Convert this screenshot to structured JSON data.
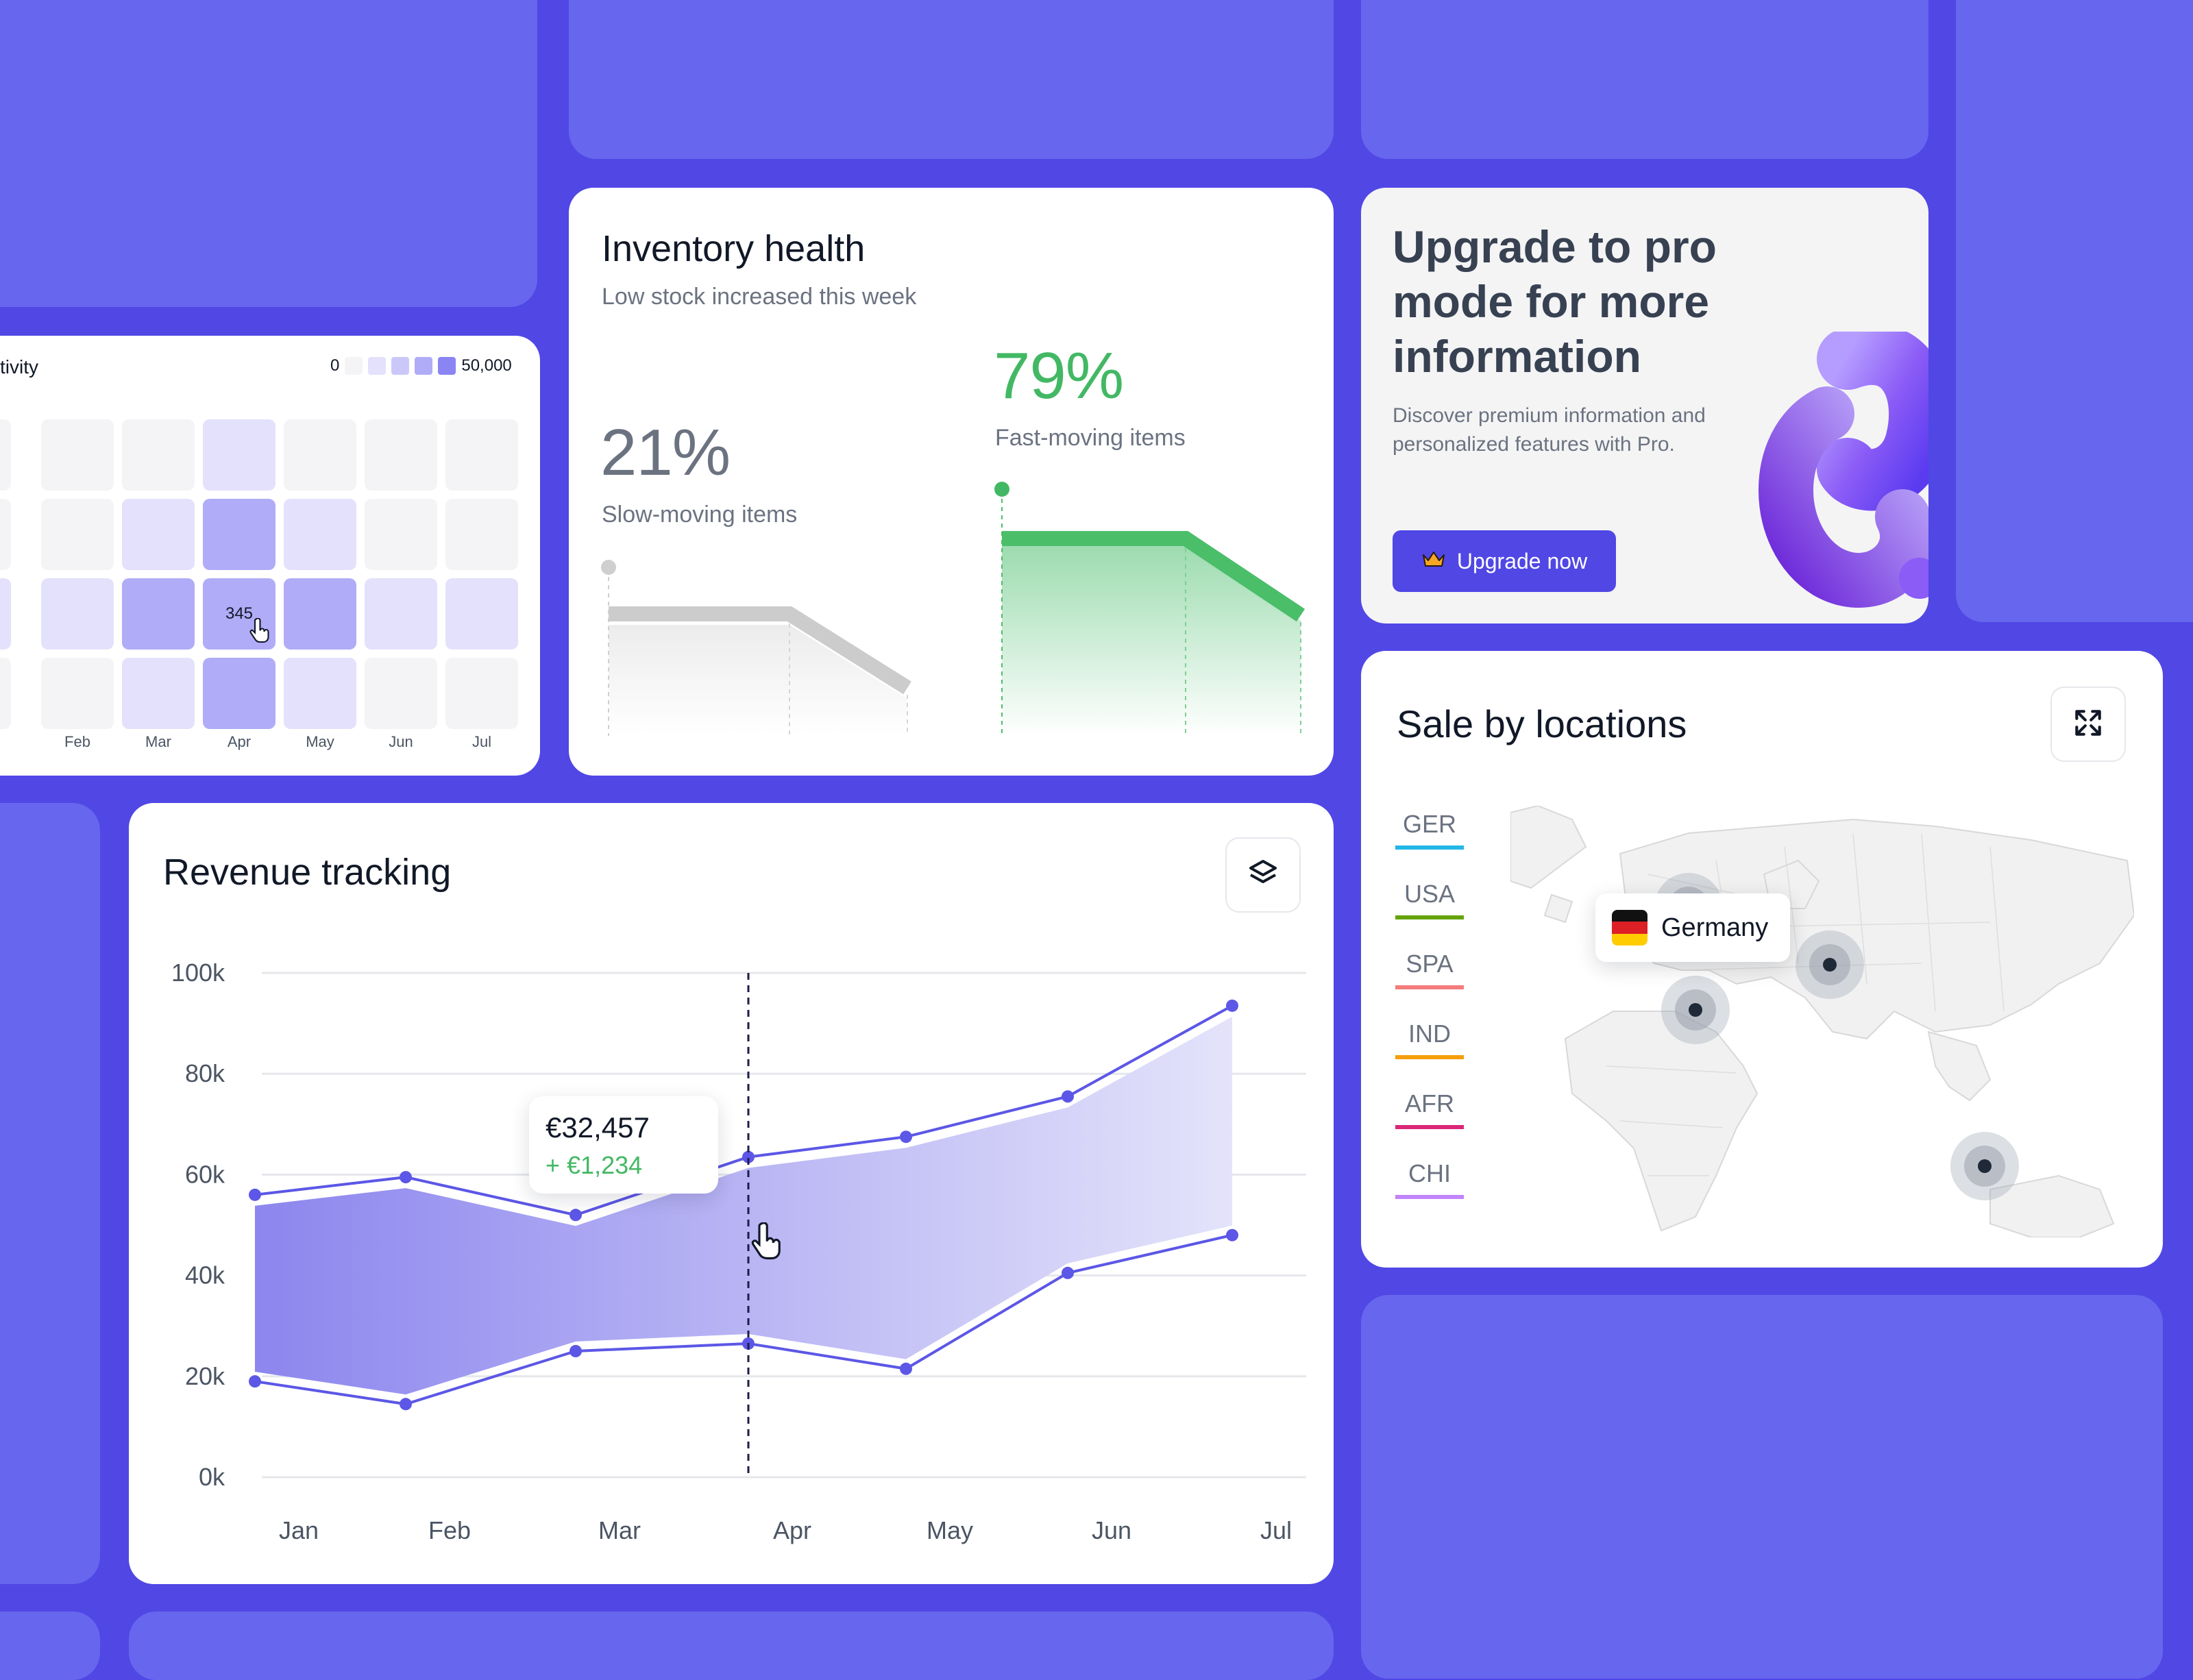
{
  "heatmap": {
    "title_fragment": "tivity",
    "legend_min": "0",
    "legend_max": "50,000",
    "legend_colors": [
      "#f4f4f6",
      "#e3e1fb",
      "#cbc8f9",
      "#b0acf7",
      "#8b84f3"
    ],
    "months": [
      "n",
      "Feb",
      "Mar",
      "Apr",
      "May",
      "Jun",
      "Jul"
    ],
    "grid_levels": [
      [
        0,
        0,
        0,
        1,
        0,
        0,
        0
      ],
      [
        0,
        0,
        1,
        2,
        1,
        0,
        0
      ],
      [
        1,
        1,
        2,
        2,
        2,
        1,
        1
      ],
      [
        0,
        0,
        1,
        2,
        1,
        0,
        0
      ]
    ],
    "hover_value": "345"
  },
  "inventory": {
    "title": "Inventory health",
    "subtitle": "Low stock increased this week",
    "slow_pct": "21%",
    "slow_label": "Slow-moving items",
    "fast_pct": "79%",
    "fast_label": "Fast-moving items",
    "slow_color": "#6b7280",
    "fast_color": "#43b864"
  },
  "upgrade": {
    "title": "Upgrade to pro mode for more information",
    "text": "Discover premium information and personalized features with Pro.",
    "button_label": "Upgrade now",
    "button_icon": "crown-icon"
  },
  "revenue": {
    "title": "Revenue tracking",
    "layers_icon": "layers-icon",
    "tooltip_value": "€32,457",
    "tooltip_delta": "+ €1,234",
    "hover_month": "Apr"
  },
  "chart_data": {
    "type": "area",
    "title": "Revenue tracking",
    "categories": [
      "Jan",
      "Feb",
      "Mar",
      "Apr",
      "May",
      "Jun",
      "Jul"
    ],
    "y_ticks": [
      "100k",
      "80k",
      "60k",
      "40k",
      "20k",
      "0k"
    ],
    "ylim": [
      0,
      100000
    ],
    "grid": true,
    "series": [
      {
        "values": [
          56000,
          59500,
          52000,
          63500,
          67500,
          75500,
          93500
        ]
      },
      {
        "values": [
          19000,
          14500,
          25000,
          26500,
          21500,
          40500,
          48000
        ]
      }
    ],
    "accent": "#5c57e6"
  },
  "locations": {
    "title": "Sale by locations",
    "expand_icon": "expand-icon",
    "regions": [
      {
        "code": "GER",
        "color": "#22b7e6"
      },
      {
        "code": "USA",
        "color": "#65a30d"
      },
      {
        "code": "SPA",
        "color": "#f47c7c"
      },
      {
        "code": "IND",
        "color": "#f59e0b"
      },
      {
        "code": "AFR",
        "color": "#db2777"
      },
      {
        "code": "CHI",
        "color": "#c084fc"
      }
    ],
    "tooltip_country": "Germany",
    "tooltip_flag": "germany-flag-icon"
  }
}
